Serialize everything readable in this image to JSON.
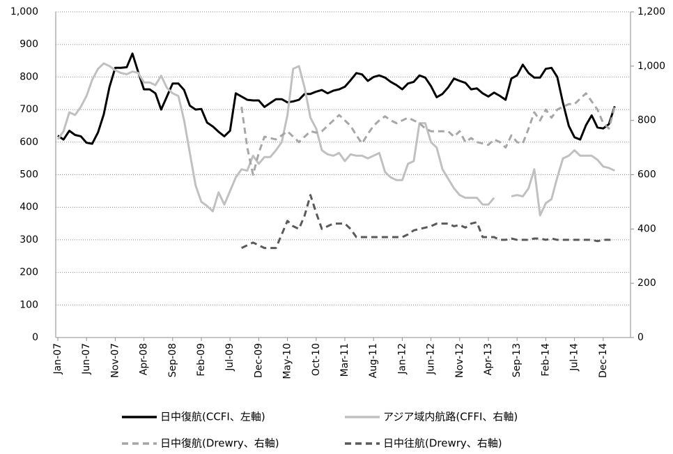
{
  "chart_data": {
    "type": "line",
    "categories": [
      "Jan-07",
      null,
      null,
      null,
      null,
      "Jun-07",
      null,
      null,
      null,
      null,
      "Nov-07",
      null,
      null,
      null,
      null,
      "Apr-08",
      null,
      null,
      null,
      null,
      "Sep-08",
      null,
      null,
      null,
      null,
      "Feb-09",
      null,
      null,
      null,
      null,
      "Jul-09",
      null,
      null,
      null,
      null,
      "Dec-09",
      null,
      null,
      null,
      null,
      "May-10",
      null,
      null,
      null,
      null,
      "Oct-10",
      null,
      null,
      null,
      null,
      "Mar-11",
      null,
      null,
      null,
      null,
      "Aug-11",
      null,
      null,
      null,
      null,
      "Jan-12",
      null,
      null,
      null,
      null,
      "Jun-12",
      null,
      null,
      null,
      null,
      "Nov-12",
      null,
      null,
      null,
      null,
      "Apr-13",
      null,
      null,
      null,
      null,
      "Sep-13",
      null,
      null,
      null,
      null,
      "Feb-14",
      null,
      null,
      null,
      null,
      "Jul-14",
      null,
      null,
      null,
      null,
      "Dec-14",
      null,
      null
    ],
    "ylim": [
      0,
      1000
    ],
    "yticks": [
      0,
      100,
      200,
      300,
      400,
      500,
      600,
      700,
      800,
      900,
      {
        "value": 1000,
        "label": "1,000"
      }
    ],
    "y2lim": [
      0,
      1200
    ],
    "y2ticks": [
      0,
      200,
      400,
      600,
      800,
      {
        "value": 1000,
        "label": "1,000"
      },
      {
        "value": 1200,
        "label": "1,200"
      }
    ],
    "grid": true,
    "legend": "bottom",
    "series": [
      {
        "name": "日中復航(CCFI、左軸)",
        "color": "#000000",
        "style": "solid",
        "axis": "y",
        "values": [
          620,
          608,
          635,
          622,
          618,
          598,
          595,
          630,
          685,
          770,
          828,
          828,
          830,
          872,
          815,
          762,
          762,
          750,
          700,
          740,
          780,
          780,
          760,
          712,
          700,
          702,
          660,
          648,
          632,
          618,
          635,
          750,
          740,
          730,
          728,
          728,
          708,
          720,
          732,
          732,
          722,
          725,
          730,
          748,
          748,
          755,
          760,
          750,
          758,
          762,
          770,
          790,
          812,
          808,
          788,
          800,
          805,
          798,
          785,
          775,
          762,
          780,
          785,
          805,
          798,
          772,
          738,
          748,
          768,
          795,
          788,
          782,
          762,
          765,
          750,
          740,
          752,
          742,
          730,
          795,
          805,
          838,
          812,
          798,
          798,
          825,
          828,
          800,
          720,
          650,
          615,
          608,
          652,
          682,
          645,
          642,
          655,
          710
        ]
      },
      {
        "name": "アジア域内航路(CFFI、右軸)",
        "color": "#c0c0c0",
        "style": "solid",
        "axis": "y2",
        "values": [
          730,
          760,
          830,
          820,
          850,
          890,
          950,
          990,
          1010,
          1000,
          985,
          975,
          970,
          980,
          975,
          940,
          940,
          930,
          965,
          920,
          900,
          890,
          800,
          680,
          560,
          500,
          485,
          465,
          535,
          490,
          540,
          590,
          620,
          615,
          670,
          640,
          665,
          665,
          690,
          720,
          820,
          990,
          1000,
          920,
          810,
          770,
          690,
          675,
          670,
          680,
          650,
          675,
          670,
          670,
          660,
          670,
          680,
          610,
          590,
          580,
          580,
          640,
          650,
          790,
          790,
          720,
          700,
          620,
          585,
          550,
          525,
          515,
          515,
          515,
          490,
          490,
          515,
          null,
          null,
          520,
          525,
          520,
          550,
          620,
          450,
          495,
          510,
          590,
          660,
          670,
          690,
          670,
          670,
          670,
          655,
          630,
          625,
          615
        ]
      },
      {
        "name": "日中復航(Drewry、右軸)",
        "color": "#a6a6a6",
        "style": "dashed",
        "axis": "y2",
        "values": [
          null,
          null,
          null,
          null,
          null,
          null,
          null,
          null,
          null,
          null,
          null,
          null,
          null,
          null,
          null,
          null,
          null,
          null,
          null,
          null,
          null,
          null,
          null,
          null,
          null,
          null,
          null,
          null,
          null,
          null,
          null,
          null,
          850,
          700,
          600,
          680,
          740,
          735,
          730,
          745,
          760,
          740,
          720,
          740,
          760,
          755,
          760,
          780,
          800,
          820,
          800,
          780,
          745,
          715,
          750,
          780,
          800,
          815,
          800,
          790,
          800,
          810,
          800,
          790,
          770,
          760,
          760,
          760,
          760,
          740,
          760,
          720,
          735,
          720,
          715,
          710,
          730,
          720,
          700,
          745,
          720,
          715,
          770,
          830,
          800,
          840,
          810,
          840,
          850,
          860,
          860,
          880,
          900,
          870,
          840,
          790,
          770,
          850
        ]
      },
      {
        "name": "日中往航(Drewry、右軸)",
        "color": "#595959",
        "style": "dashed",
        "axis": "y2",
        "values": [
          null,
          null,
          null,
          null,
          null,
          null,
          null,
          null,
          null,
          null,
          null,
          null,
          null,
          null,
          null,
          null,
          null,
          null,
          null,
          null,
          null,
          null,
          null,
          null,
          null,
          null,
          null,
          null,
          null,
          null,
          null,
          null,
          330,
          340,
          350,
          340,
          330,
          330,
          330,
          380,
          430,
          410,
          400,
          450,
          525,
          460,
          400,
          410,
          420,
          420,
          420,
          400,
          370,
          370,
          370,
          370,
          370,
          370,
          370,
          370,
          370,
          380,
          395,
          400,
          405,
          410,
          420,
          420,
          420,
          410,
          415,
          405,
          420,
          425,
          370,
          370,
          370,
          360,
          360,
          365,
          360,
          360,
          360,
          365,
          365,
          360,
          365,
          360,
          360,
          360,
          360,
          360,
          360,
          360,
          355,
          360,
          360,
          360
        ]
      }
    ]
  }
}
